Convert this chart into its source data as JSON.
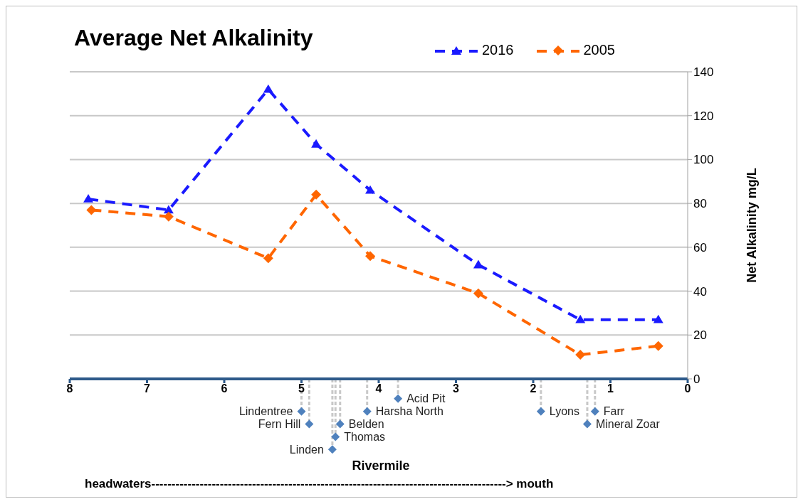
{
  "chart_data": {
    "type": "line",
    "title": "Average Net Alkalinity",
    "xlabel": "Rivermile",
    "ylabel": "Net Alkalinity mg/L",
    "xlim": [
      8,
      0
    ],
    "xticks": [
      8,
      7,
      6,
      5,
      4,
      3,
      2,
      1,
      0
    ],
    "ylim": [
      0,
      140
    ],
    "yticks": [
      0,
      20,
      40,
      60,
      80,
      100,
      120,
      140
    ],
    "grid": "y",
    "legend": "top right",
    "line_style": "dashed",
    "series": [
      {
        "name": "2016",
        "color": "#1a1aff",
        "marker": "triangle",
        "x": [
          7.76,
          6.72,
          5.43,
          4.81,
          4.11,
          2.71,
          1.39,
          0.38
        ],
        "values": [
          82,
          77,
          132,
          107,
          86,
          52,
          27,
          27
        ]
      },
      {
        "name": "2005",
        "color": "#ff6600",
        "marker": "diamond",
        "x": [
          7.72,
          6.72,
          5.43,
          4.81,
          4.11,
          2.71,
          1.39,
          0.38
        ],
        "values": [
          77,
          74,
          55,
          84,
          56,
          39,
          11,
          15
        ]
      }
    ],
    "ref_lines": [
      {
        "axis": "x",
        "value": 5.0,
        "label": "Lindentree",
        "color": "#c8c8c8",
        "line_style": "dashed"
      },
      {
        "axis": "x",
        "value": 4.9,
        "label": "Fern Hill",
        "color": "#c8c8c8",
        "line_style": "dashed"
      },
      {
        "axis": "x",
        "value": 4.6,
        "label": "Linden",
        "color": "#c8c8c8",
        "line_style": "dashed"
      },
      {
        "axis": "x",
        "value": 4.56,
        "label": "Thomas",
        "color": "#c8c8c8",
        "line_style": "dashed"
      },
      {
        "axis": "x",
        "value": 4.5,
        "label": "Belden",
        "color": "#c8c8c8",
        "line_style": "dashed"
      },
      {
        "axis": "x",
        "value": 4.15,
        "label": "Harsha North",
        "color": "#c8c8c8",
        "line_style": "dashed"
      },
      {
        "axis": "x",
        "value": 3.75,
        "label": "Acid Pit",
        "color": "#c8c8c8",
        "line_style": "dashed"
      },
      {
        "axis": "x",
        "value": 1.9,
        "label": "Lyons",
        "color": "#c8c8c8",
        "line_style": "dashed"
      },
      {
        "axis": "x",
        "value": 1.3,
        "label": "Mineral Zoar",
        "color": "#c8c8c8",
        "line_style": "dashed"
      },
      {
        "axis": "x",
        "value": 1.2,
        "label": "Farr",
        "color": "#c8c8c8",
        "line_style": "dashed"
      }
    ],
    "annotations": [
      "headwaters----------------------------------------------------------------------------------------> mouth"
    ]
  }
}
